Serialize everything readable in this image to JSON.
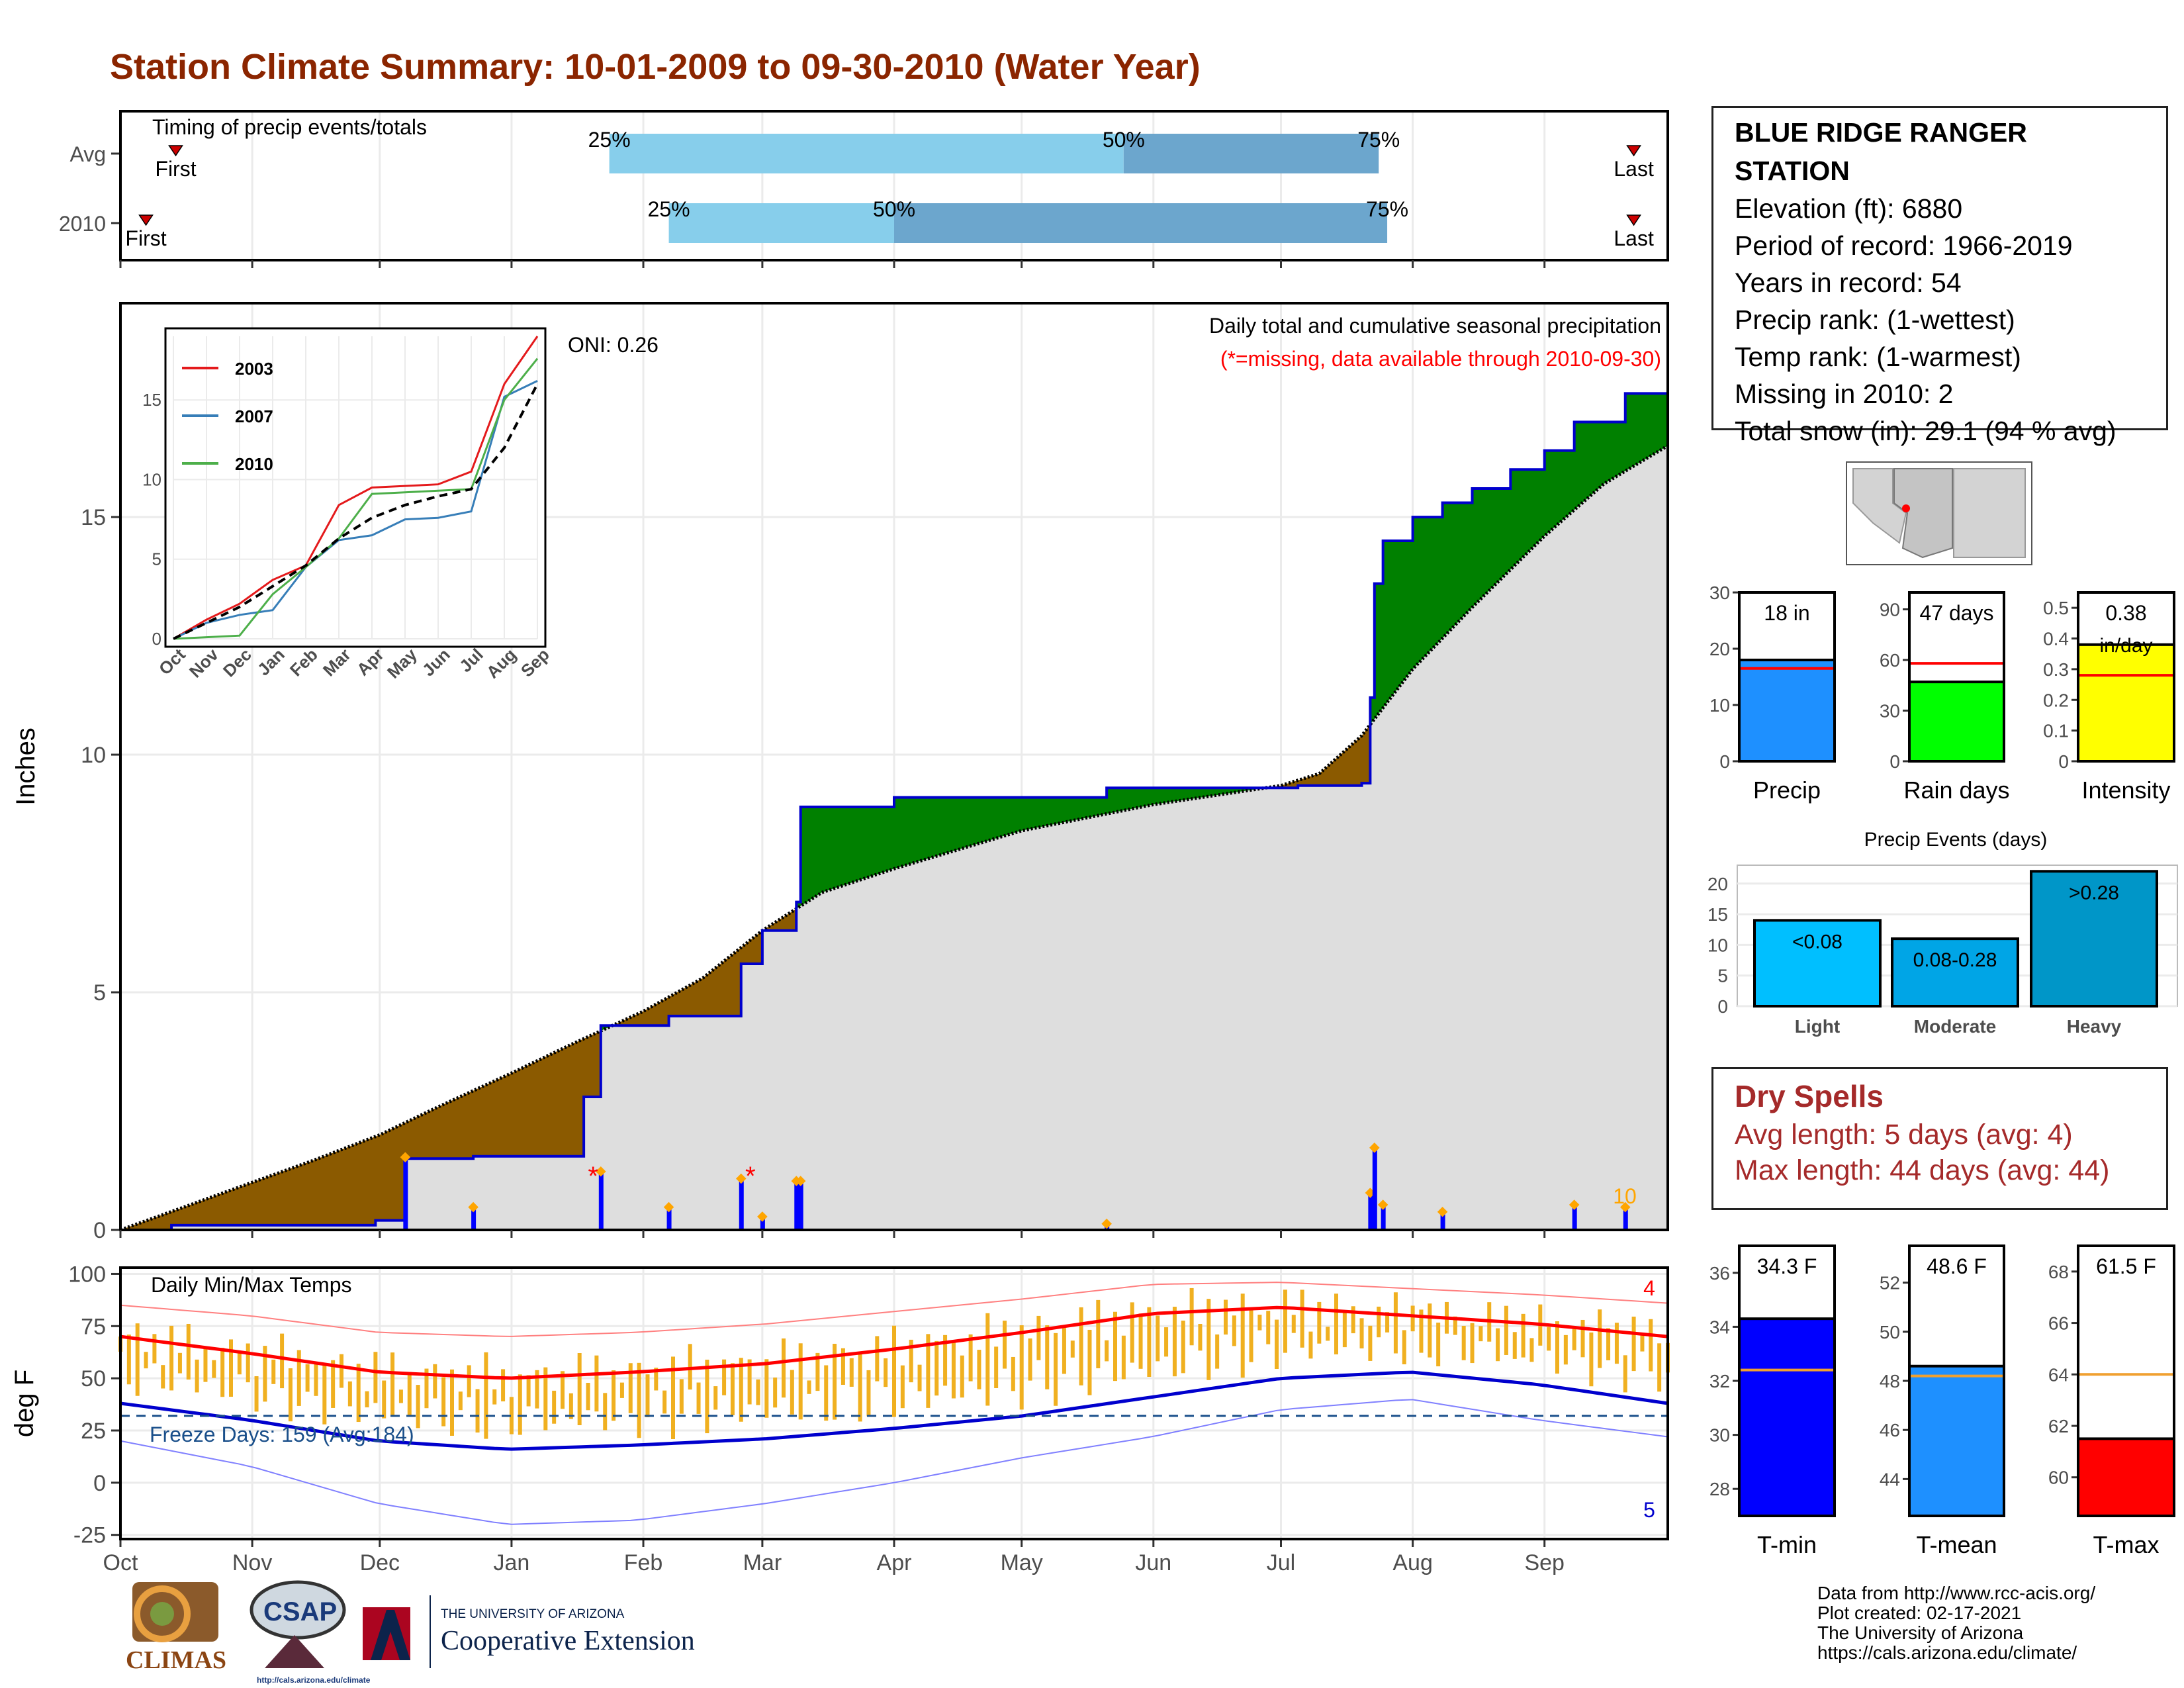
{
  "title": "Station Climate Summary: 10-01-2009 to 09-30-2010 (Water Year)",
  "station": {
    "name": "BLUE RIDGE RANGER STATION",
    "name_line1": "BLUE RIDGE RANGER",
    "name_line2": "STATION",
    "elevation": "Elevation (ft): 6880",
    "period": "Period of record: 1966-2019",
    "years": "Years in record: 54",
    "precip_rank": "Precip rank:  (1-wettest)",
    "temp_rank": "Temp rank:  (1-warmest)",
    "missing": "Missing in 2010: 2",
    "snow": "Total snow (in): 29.1 (94 % avg)"
  },
  "dry_spells": {
    "heading": "Dry Spells",
    "avg": "Avg length: 5 days (avg: 4)",
    "max": "Max length: 44 days (avg: 44)"
  },
  "credits": [
    "Data from http://www.rcc-acis.org/",
    "Plot created: 02-17-2021",
    "The University of Arizona",
    "https://cals.arizona.edu/climate/"
  ],
  "logos": {
    "climas": "CLIMAS",
    "csap": "CSAP",
    "csap_url": "http://cals.arizona.edu/climate",
    "ua_small": "THE UNIVERSITY OF ARIZONA",
    "ua_big": "Cooperative Extension"
  },
  "colors": {
    "title": "#8b2500",
    "above_avg": "#008000",
    "below_avg": "#8b5a00",
    "precip_line": "#0000cd",
    "tmax": "#ff0000",
    "tmin": "#0000cd",
    "temp_bars": "#f0b020",
    "light_blue": "#87ceeb",
    "mid_blue": "#6ca6cd"
  },
  "chart_data": [
    {
      "id": "timing",
      "type": "bar",
      "title": "Timing of precip events/totals",
      "rows": [
        {
          "label": "Avg",
          "first_date": "2009-10-14",
          "p25": "2010-01-24",
          "p50": "2010-05-25",
          "p75": "2010-07-24",
          "last_date": "2010-09-22",
          "labels": {
            "first": "First",
            "p25": "25%",
            "p50": "50%",
            "p75": "75%",
            "last": "Last"
          }
        },
        {
          "label": "2010",
          "first_date": "2009-10-07",
          "p25": "2010-02-07",
          "p50": "2010-04-01",
          "p75": "2010-07-26",
          "last_date": "2010-09-22",
          "labels": {
            "first": "First",
            "p25": "25%",
            "p50": "50%",
            "p75": "75%",
            "last": "Last"
          }
        }
      ]
    },
    {
      "id": "cumulative_precip",
      "type": "area",
      "title": "Daily total and cumulative seasonal precipitation",
      "subtitle": "(*=missing, data available through 2010-09-30)",
      "ylabel": "Inches",
      "ylim": [
        0,
        19.5
      ],
      "yticks": [
        0,
        5,
        10,
        15
      ],
      "oni": "ONI: 0.26",
      "count_label": "10",
      "avg_cumulative": [
        {
          "x": "2009-10-01",
          "y": 0.0
        },
        {
          "x": "2009-10-15",
          "y": 0.45
        },
        {
          "x": "2009-11-01",
          "y": 1.0
        },
        {
          "x": "2009-11-15",
          "y": 1.45
        },
        {
          "x": "2009-12-01",
          "y": 2.0
        },
        {
          "x": "2009-12-15",
          "y": 2.6
        },
        {
          "x": "2010-01-01",
          "y": 3.3
        },
        {
          "x": "2010-01-15",
          "y": 3.9
        },
        {
          "x": "2010-02-01",
          "y": 4.6
        },
        {
          "x": "2010-02-15",
          "y": 5.3
        },
        {
          "x": "2010-03-01",
          "y": 6.3
        },
        {
          "x": "2010-03-15",
          "y": 7.1
        },
        {
          "x": "2010-04-01",
          "y": 7.6
        },
        {
          "x": "2010-05-01",
          "y": 8.4
        },
        {
          "x": "2010-06-01",
          "y": 8.95
        },
        {
          "x": "2010-07-01",
          "y": 9.35
        },
        {
          "x": "2010-07-10",
          "y": 9.6
        },
        {
          "x": "2010-07-20",
          "y": 10.4
        },
        {
          "x": "2010-08-01",
          "y": 11.8
        },
        {
          "x": "2010-08-15",
          "y": 13.1
        },
        {
          "x": "2010-09-01",
          "y": 14.6
        },
        {
          "x": "2010-09-15",
          "y": 15.7
        },
        {
          "x": "2010-09-30",
          "y": 16.5
        }
      ],
      "cumulative_2010": [
        {
          "x": "2009-10-01",
          "y": 0.0
        },
        {
          "x": "2009-10-13",
          "y": 0.1
        },
        {
          "x": "2009-11-30",
          "y": 0.2
        },
        {
          "x": "2009-12-07",
          "y": 1.5
        },
        {
          "x": "2009-12-23",
          "y": 1.55
        },
        {
          "x": "2010-01-18",
          "y": 2.8
        },
        {
          "x": "2010-01-22",
          "y": 4.3
        },
        {
          "x": "2010-02-07",
          "y": 4.5
        },
        {
          "x": "2010-02-24",
          "y": 5.6
        },
        {
          "x": "2010-03-01",
          "y": 6.3
        },
        {
          "x": "2010-03-09",
          "y": 6.9
        },
        {
          "x": "2010-03-10",
          "y": 8.9
        },
        {
          "x": "2010-04-01",
          "y": 9.1
        },
        {
          "x": "2010-05-21",
          "y": 9.3
        },
        {
          "x": "2010-07-05",
          "y": 9.35
        },
        {
          "x": "2010-07-20",
          "y": 9.4
        },
        {
          "x": "2010-07-22",
          "y": 11.2
        },
        {
          "x": "2010-07-23",
          "y": 13.6
        },
        {
          "x": "2010-07-25",
          "y": 14.5
        },
        {
          "x": "2010-08-01",
          "y": 15.0
        },
        {
          "x": "2010-08-08",
          "y": 15.3
        },
        {
          "x": "2010-08-15",
          "y": 15.6
        },
        {
          "x": "2010-08-24",
          "y": 16.0
        },
        {
          "x": "2010-09-01",
          "y": 16.4
        },
        {
          "x": "2010-09-08",
          "y": 17.0
        },
        {
          "x": "2010-09-20",
          "y": 17.6
        },
        {
          "x": "2010-09-30",
          "y": 17.6
        }
      ],
      "daily_bars": [
        {
          "x": "2009-12-07",
          "y": 1.5
        },
        {
          "x": "2009-12-23",
          "y": 0.45
        },
        {
          "x": "2010-01-22",
          "y": 1.2
        },
        {
          "x": "2010-02-07",
          "y": 0.45
        },
        {
          "x": "2010-02-24",
          "y": 1.05
        },
        {
          "x": "2010-03-01",
          "y": 0.25
        },
        {
          "x": "2010-03-09",
          "y": 1.0
        },
        {
          "x": "2010-03-10",
          "y": 1.0
        },
        {
          "x": "2010-05-21",
          "y": 0.1
        },
        {
          "x": "2010-07-22",
          "y": 0.75
        },
        {
          "x": "2010-07-23",
          "y": 1.7
        },
        {
          "x": "2010-07-25",
          "y": 0.5
        },
        {
          "x": "2010-08-08",
          "y": 0.35
        },
        {
          "x": "2010-09-08",
          "y": 0.5
        },
        {
          "x": "2010-09-20",
          "y": 0.45
        }
      ],
      "missing_markers": [
        "2010-01-18",
        "2010-02-24"
      ],
      "xticks": [
        "Oct",
        "Nov",
        "Dec",
        "Jan",
        "Feb",
        "Mar",
        "Apr",
        "May",
        "Jun",
        "Jul",
        "Aug",
        "Sep"
      ]
    },
    {
      "id": "inset_years",
      "type": "line",
      "xticks": [
        "Oct",
        "Nov",
        "Dec",
        "Jan",
        "Feb",
        "Mar",
        "Apr",
        "May",
        "Jun",
        "Jul",
        "Aug",
        "Sep"
      ],
      "yticks": [
        0,
        5,
        10,
        15
      ],
      "ylim": [
        0,
        19
      ],
      "series": [
        {
          "name": "2003",
          "color": "#e41a1c",
          "values": [
            0,
            1.2,
            2.2,
            3.7,
            4.6,
            8.4,
            9.5,
            9.6,
            9.7,
            10.5,
            16,
            19
          ]
        },
        {
          "name": "2007",
          "color": "#377eb8",
          "values": [
            0,
            1.0,
            1.5,
            1.8,
            4.5,
            6.2,
            6.5,
            7.5,
            7.6,
            8.0,
            15.2,
            16.2
          ]
        },
        {
          "name": "2010",
          "color": "#4daf4a",
          "values": [
            0,
            0.1,
            0.2,
            2.8,
            4.5,
            6.3,
            9.1,
            9.2,
            9.3,
            9.4,
            15.0,
            17.6
          ]
        },
        {
          "name": "avg",
          "color": "#000000",
          "values": [
            0,
            1.0,
            2.0,
            3.3,
            4.6,
            6.3,
            7.6,
            8.4,
            8.95,
            9.4,
            12.0,
            16.0
          ]
        }
      ]
    },
    {
      "id": "temps",
      "type": "line",
      "title": "Daily Min/Max Temps",
      "ylabel": "deg F",
      "ylim": [
        -27,
        103
      ],
      "yticks": [
        -25,
        0,
        25,
        50,
        75,
        100
      ],
      "freeze_label": "Freeze Days: 159 (Avg:184)",
      "freeze_line": 32,
      "record_high_count": "4",
      "record_low_count": "5",
      "xticks": [
        "Oct",
        "Nov",
        "Dec",
        "Jan",
        "Feb",
        "Mar",
        "Apr",
        "May",
        "Jun",
        "Jul",
        "Aug",
        "Sep"
      ],
      "avg_max": [
        {
          "m": 0,
          "y": 70
        },
        {
          "m": 1,
          "y": 62
        },
        {
          "m": 2,
          "y": 53
        },
        {
          "m": 3,
          "y": 50
        },
        {
          "m": 4,
          "y": 53
        },
        {
          "m": 5,
          "y": 57
        },
        {
          "m": 6,
          "y": 64
        },
        {
          "m": 7,
          "y": 72
        },
        {
          "m": 8,
          "y": 81
        },
        {
          "m": 9,
          "y": 84
        },
        {
          "m": 10,
          "y": 80
        },
        {
          "m": 11,
          "y": 76
        },
        {
          "m": 12,
          "y": 70
        }
      ],
      "avg_min": [
        {
          "m": 0,
          "y": 38
        },
        {
          "m": 1,
          "y": 30
        },
        {
          "m": 2,
          "y": 20
        },
        {
          "m": 3,
          "y": 16
        },
        {
          "m": 4,
          "y": 18
        },
        {
          "m": 5,
          "y": 21
        },
        {
          "m": 6,
          "y": 26
        },
        {
          "m": 7,
          "y": 32
        },
        {
          "m": 8,
          "y": 41
        },
        {
          "m": 9,
          "y": 50
        },
        {
          "m": 10,
          "y": 53
        },
        {
          "m": 11,
          "y": 47
        },
        {
          "m": 12,
          "y": 38
        }
      ],
      "rec_max": [
        {
          "m": 0,
          "y": 85
        },
        {
          "m": 1,
          "y": 80
        },
        {
          "m": 2,
          "y": 72
        },
        {
          "m": 3,
          "y": 70
        },
        {
          "m": 4,
          "y": 72
        },
        {
          "m": 5,
          "y": 76
        },
        {
          "m": 6,
          "y": 82
        },
        {
          "m": 7,
          "y": 88
        },
        {
          "m": 8,
          "y": 95
        },
        {
          "m": 9,
          "y": 96
        },
        {
          "m": 10,
          "y": 93
        },
        {
          "m": 11,
          "y": 90
        },
        {
          "m": 12,
          "y": 86
        }
      ],
      "rec_min": [
        {
          "m": 0,
          "y": 20
        },
        {
          "m": 1,
          "y": 8
        },
        {
          "m": 2,
          "y": -10
        },
        {
          "m": 3,
          "y": -20
        },
        {
          "m": 4,
          "y": -18
        },
        {
          "m": 5,
          "y": -10
        },
        {
          "m": 6,
          "y": 0
        },
        {
          "m": 7,
          "y": 12
        },
        {
          "m": 8,
          "y": 22
        },
        {
          "m": 9,
          "y": 35
        },
        {
          "m": 10,
          "y": 40
        },
        {
          "m": 11,
          "y": 30
        },
        {
          "m": 12,
          "y": 22
        }
      ]
    },
    {
      "id": "precip_summary",
      "type": "bar",
      "panels": [
        {
          "label": "Precip",
          "value_label": "18 in",
          "value": 18,
          "avg": 16.5,
          "ylim": [
            0,
            30
          ],
          "yticks": [
            0,
            10,
            20,
            30
          ],
          "color": "#1e90ff"
        },
        {
          "label": "Rain days",
          "value_label": "47 days",
          "value": 47,
          "avg": 58,
          "ylim": [
            0,
            100
          ],
          "yticks": [
            0,
            30,
            60,
            90
          ],
          "color": "#00ff00"
        },
        {
          "label": "Intensity",
          "value_label": "0.38",
          "unit_label": "in/day",
          "value": 0.38,
          "avg": 0.28,
          "ylim": [
            0,
            0.55
          ],
          "yticks": [
            0.0,
            0.1,
            0.2,
            0.3,
            0.4,
            0.5
          ],
          "color": "#ffff00"
        }
      ]
    },
    {
      "id": "precip_events",
      "type": "bar",
      "title": "Precip Events (days)",
      "categories": [
        "Light",
        "Moderate",
        "Heavy"
      ],
      "bar_labels": [
        "<0.08",
        "0.08-0.28",
        ">0.28"
      ],
      "values": [
        14,
        11,
        22
      ],
      "ylim": [
        0,
        23
      ],
      "yticks": [
        0,
        5,
        10,
        15,
        20
      ],
      "colors": [
        "#00bfff",
        "#00a5e6",
        "#0096c8"
      ]
    },
    {
      "id": "temp_summary",
      "type": "bar",
      "panels": [
        {
          "label": "T-min",
          "value_label": "34.3 F",
          "value": 34.3,
          "avg": 32.4,
          "ylim": [
            27,
            37
          ],
          "yticks": [
            28,
            30,
            32,
            34,
            36
          ],
          "color": "#0000ff"
        },
        {
          "label": "T-mean",
          "value_label": "48.6 F",
          "value": 48.6,
          "avg": 48.2,
          "ylim": [
            42.5,
            53.5
          ],
          "yticks": [
            44,
            46,
            48,
            50,
            52
          ],
          "color": "#1e90ff"
        },
        {
          "label": "T-max",
          "value_label": "61.5 F",
          "value": 61.5,
          "avg": 64,
          "ylim": [
            58.5,
            69
          ],
          "yticks": [
            60,
            62,
            64,
            66,
            68
          ],
          "color": "#ff0000"
        }
      ]
    }
  ]
}
